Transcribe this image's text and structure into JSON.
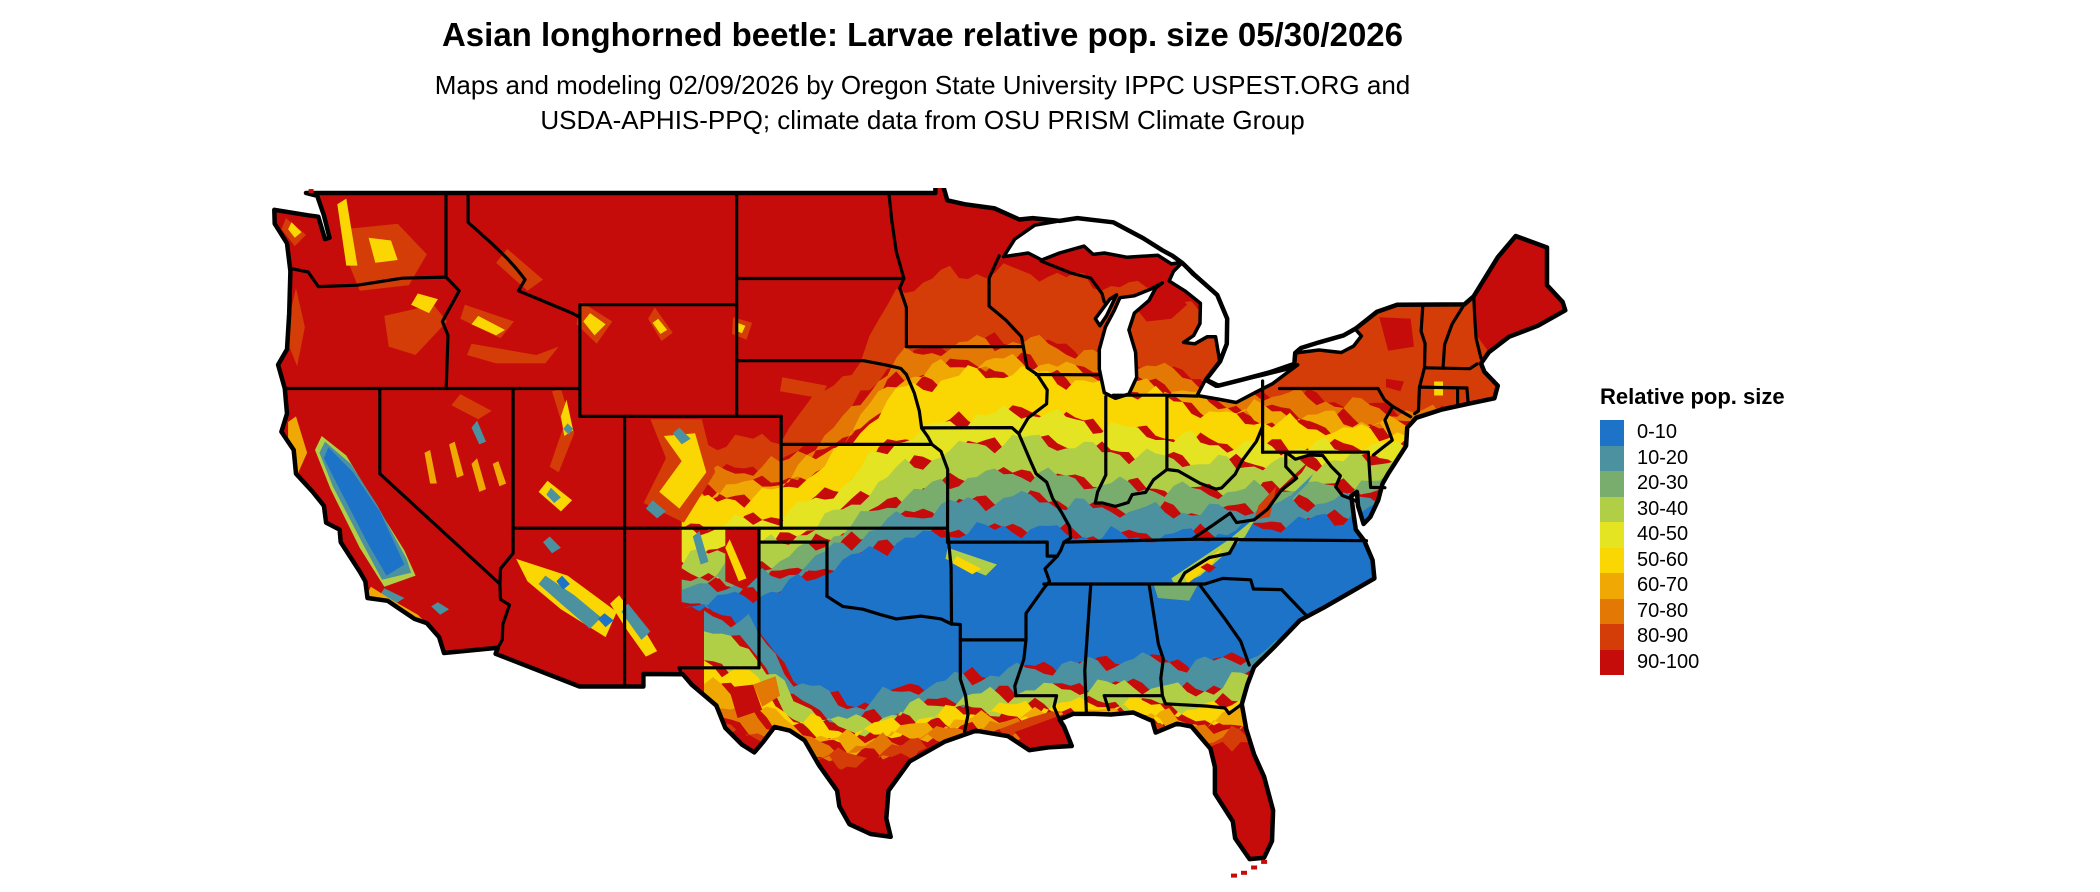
{
  "header": {
    "title": "Asian longhorned beetle: Larvae relative pop. size 05/30/2026",
    "subtitle_line1": "Maps and modeling 02/09/2026 by Oregon State University IPPC USPEST.ORG and",
    "subtitle_line2": "USDA-APHIS-PPQ; climate data from OSU PRISM Climate Group"
  },
  "legend": {
    "title": "Relative pop. size",
    "items": [
      {
        "label": "0-10",
        "color": "#1c73c8"
      },
      {
        "label": "10-20",
        "color": "#4b91a0"
      },
      {
        "label": "20-30",
        "color": "#78ad6e"
      },
      {
        "label": "30-40",
        "color": "#b0cf46"
      },
      {
        "label": "40-50",
        "color": "#e4e423"
      },
      {
        "label": "50-60",
        "color": "#fad603"
      },
      {
        "label": "60-70",
        "color": "#f0a805"
      },
      {
        "label": "70-80",
        "color": "#e47805"
      },
      {
        "label": "80-90",
        "color": "#d43c08"
      },
      {
        "label": "90-100",
        "color": "#c60c0a"
      }
    ]
  },
  "map": {
    "outline_color": "#000000",
    "water_color": "#ffffff",
    "background": "#ffffff"
  },
  "chart_data": {
    "type": "heatmap",
    "title": "Asian longhorned beetle: Larvae relative pop. size 05/30/2026",
    "subtitle": "Maps and modeling 02/09/2026 by Oregon State University IPPC USPEST.ORG and USDA-APHIS-PPQ; climate data from OSU PRISM Climate Group",
    "variable": "Larvae relative pop. size",
    "date_shown": "05/30/2026",
    "model_date": "02/09/2026",
    "region": "Contiguous United States",
    "legend_title": "Relative pop. size",
    "bins": [
      {
        "range": "0-10",
        "color": "#1c73c8"
      },
      {
        "range": "10-20",
        "color": "#4b91a0"
      },
      {
        "range": "20-30",
        "color": "#78ad6e"
      },
      {
        "range": "30-40",
        "color": "#b0cf46"
      },
      {
        "range": "40-50",
        "color": "#e4e423"
      },
      {
        "range": "50-60",
        "color": "#fad603"
      },
      {
        "range": "60-70",
        "color": "#f0a805"
      },
      {
        "range": "70-80",
        "color": "#e47805"
      },
      {
        "range": "80-90",
        "color": "#d43c08"
      },
      {
        "range": "90-100",
        "color": "#c60c0a"
      }
    ],
    "spatial_pattern": [
      "Northern tier (WA OR ID MT WY ND MN WI MI ME and mountain West) 80-100 (red/orange-red)",
      "Yellow 40-60 belt across NE KS IA IL IN OH PA NJ",
      "Green 20-40 belt across MO KY WV MD VA",
      "Blue 0-10 belt across southern plains and Southeast (TX OK AR TN MS AL GA SC NC)",
      "Values rise again toward Gulf coast; south Texas, Louisiana delta and Florida peninsula 90-100 (red)",
      "California Central Valley and Sierra 0-20 (blue/teal) surrounded by red"
    ]
  }
}
